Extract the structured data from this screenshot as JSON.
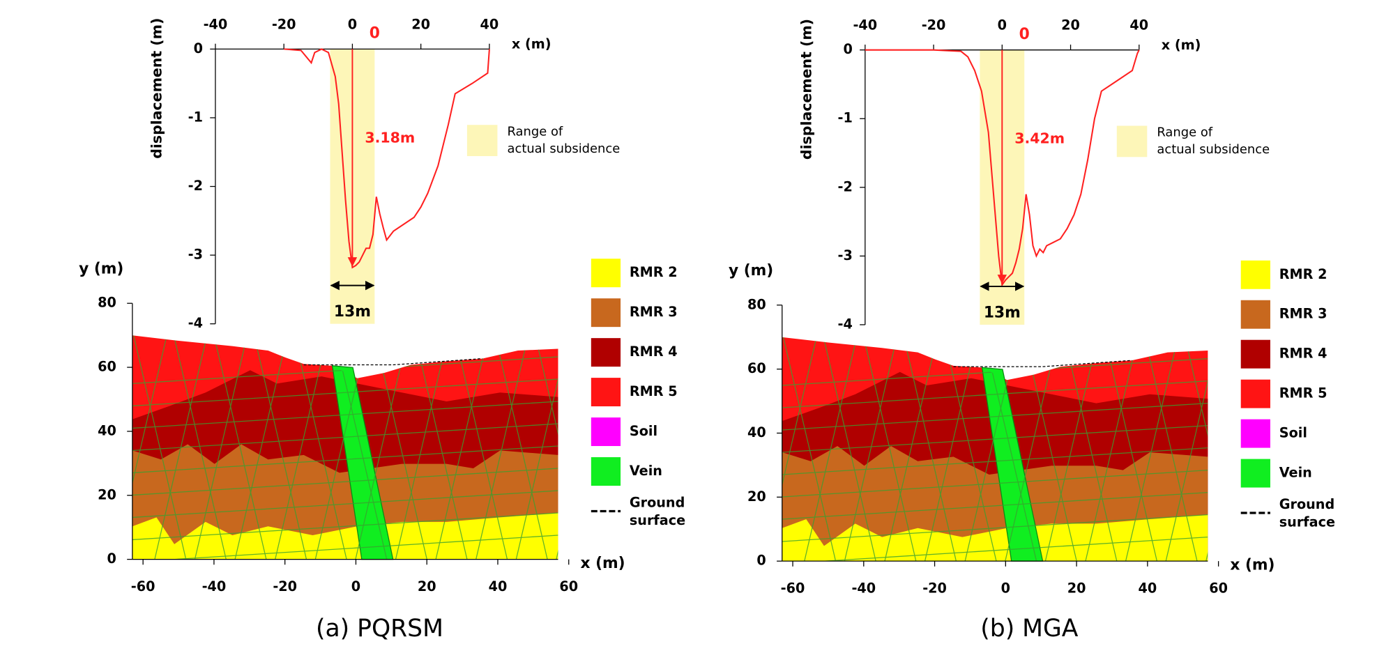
{
  "chart_data": [
    {
      "type": "line",
      "x_label": "x (m)",
      "y_label": "displacement (m)",
      "xlim": [
        -40,
        40
      ],
      "xticks": [
        -40,
        -20,
        0,
        20,
        40
      ],
      "ylim": [
        -4,
        0
      ],
      "yticks": [
        0,
        -1,
        -2,
        -3,
        -4
      ],
      "color": "#ff2020",
      "x": [
        -20,
        -15,
        -12,
        -11,
        -9,
        -7,
        -5,
        -4,
        -3,
        -2,
        -1,
        0,
        1,
        2,
        3,
        4,
        5,
        6,
        7,
        8,
        9,
        10,
        12,
        15,
        18,
        20,
        22,
        25,
        28,
        30,
        35,
        39.5,
        40
      ],
      "values": [
        0,
        -0.02,
        -0.2,
        -0.05,
        0,
        -0.05,
        -0.4,
        -0.8,
        -1.5,
        -2.2,
        -2.8,
        -3.18,
        -3.15,
        -3.1,
        -3.0,
        -2.9,
        -2.9,
        -2.7,
        -2.15,
        -2.4,
        -2.6,
        -2.78,
        -2.65,
        -2.55,
        -2.45,
        -2.3,
        -2.1,
        -1.7,
        -1.1,
        -0.65,
        -0.5,
        -0.35,
        0
      ],
      "zero_label": "0",
      "peak_label": "3.18m",
      "band": {
        "range": [
          -6.5,
          6.5
        ],
        "color": "#fdf6b8",
        "width_label": "13m",
        "label": [
          "Range of",
          "actual subsidence"
        ]
      }
    },
    {
      "type": "section",
      "x_label": "x (m)",
      "y_label": "y (m)",
      "xlim": [
        -63,
        57
      ],
      "xticks": [
        -60,
        -40,
        -20,
        0,
        20,
        40,
        60
      ],
      "ylim": [
        0,
        80
      ],
      "yticks": [
        0,
        20,
        40,
        60,
        80
      ],
      "legend": [
        {
          "label": "RMR 2",
          "color": "#ffff00"
        },
        {
          "label": "RMR 3",
          "color": "#c8681e"
        },
        {
          "label": "RMR 4",
          "color": "#b00000"
        },
        {
          "label": "RMR 5",
          "color": "#ff1414"
        },
        {
          "label": "Soil",
          "color": "#ff00ff"
        },
        {
          "label": "Vein",
          "color": "#10ee20"
        }
      ],
      "ground_surface_label": [
        "Ground",
        "surface"
      ],
      "caption": "(a) PQRSM"
    },
    {
      "type": "line",
      "x_label": "x (m)",
      "y_label": "displacement (m)",
      "xlim": [
        -40,
        40
      ],
      "xticks": [
        -40,
        -20,
        0,
        20,
        40
      ],
      "ylim": [
        -4,
        0
      ],
      "yticks": [
        0,
        -1,
        -2,
        -3,
        -4
      ],
      "color": "#ff2020",
      "x": [
        -40,
        -20,
        -12,
        -10,
        -8,
        -6,
        -4,
        -3,
        -2,
        -1,
        0,
        1,
        2,
        3,
        4,
        5,
        6,
        7,
        8,
        9,
        10,
        11,
        12,
        13,
        15,
        17,
        19,
        21,
        23,
        25,
        27,
        29,
        32,
        35,
        38,
        39.5,
        40
      ],
      "values": [
        0,
        0,
        -0.02,
        -0.1,
        -0.3,
        -0.6,
        -1.2,
        -1.8,
        -2.4,
        -3.0,
        -3.42,
        -3.35,
        -3.3,
        -3.25,
        -3.1,
        -2.9,
        -2.6,
        -2.1,
        -2.4,
        -2.85,
        -3.0,
        -2.9,
        -2.95,
        -2.85,
        -2.8,
        -2.75,
        -2.6,
        -2.4,
        -2.1,
        -1.6,
        -1.0,
        -0.6,
        -0.5,
        -0.4,
        -0.3,
        -0.05,
        0
      ],
      "zero_label": "0",
      "peak_label": "3.42m",
      "band": {
        "range": [
          -6.5,
          6.5
        ],
        "color": "#fdf6b8",
        "width_label": "13m",
        "label": [
          "Range of",
          "actual subsidence"
        ]
      }
    },
    {
      "type": "section",
      "x_label": "x (m)",
      "y_label": "y (m)",
      "xlim": [
        -63,
        57
      ],
      "xticks": [
        -60,
        -40,
        -20,
        0,
        20,
        40,
        60
      ],
      "ylim": [
        0,
        80
      ],
      "yticks": [
        0,
        20,
        40,
        60,
        80
      ],
      "legend": [
        {
          "label": "RMR 2",
          "color": "#ffff00"
        },
        {
          "label": "RMR 3",
          "color": "#c8681e"
        },
        {
          "label": "RMR 4",
          "color": "#b00000"
        },
        {
          "label": "RMR 5",
          "color": "#ff1414"
        },
        {
          "label": "Soil",
          "color": "#ff00ff"
        },
        {
          "label": "Vein",
          "color": "#10ee20"
        }
      ],
      "ground_surface_label": [
        "Ground",
        "surface"
      ],
      "caption": "(b) MGA"
    }
  ]
}
